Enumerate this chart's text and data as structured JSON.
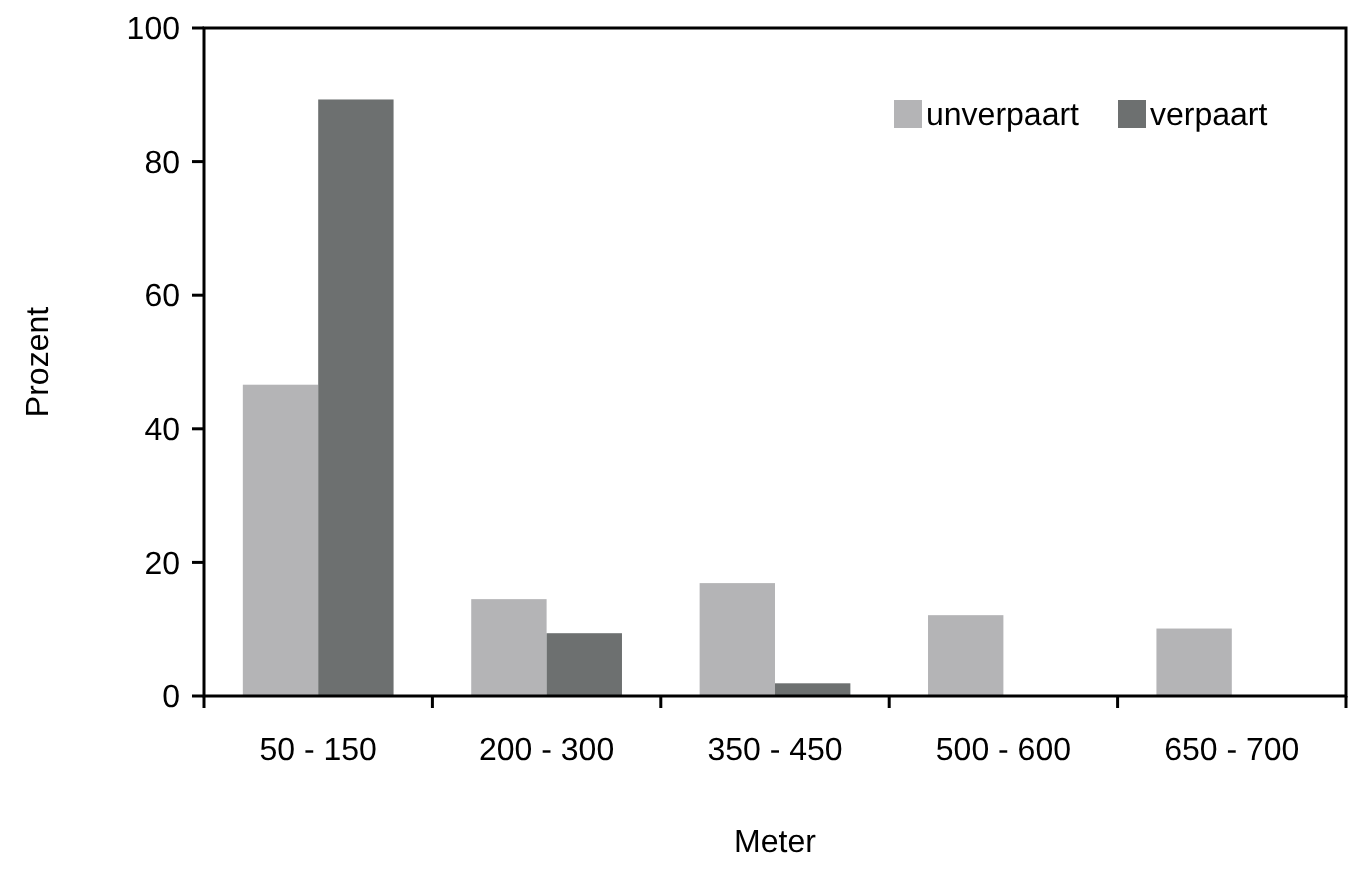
{
  "chart_data": {
    "type": "bar",
    "xlabel": "Meter",
    "ylabel": "Prozent",
    "categories": [
      "50 - 150",
      "200 - 300",
      "350 - 450",
      "500 - 600",
      "650 - 700"
    ],
    "series": [
      {
        "name": "unverpaart",
        "color": "#b4b4b6",
        "values": [
          46.6,
          14.5,
          16.9,
          12.1,
          10.1
        ]
      },
      {
        "name": "verpaart",
        "color": "#6d7070",
        "values": [
          89.3,
          9.4,
          1.9,
          0,
          0
        ]
      }
    ],
    "ylim": [
      0,
      100
    ],
    "yticks": [
      0,
      20,
      40,
      60,
      80,
      100
    ],
    "grid": false,
    "legend": "top right"
  }
}
